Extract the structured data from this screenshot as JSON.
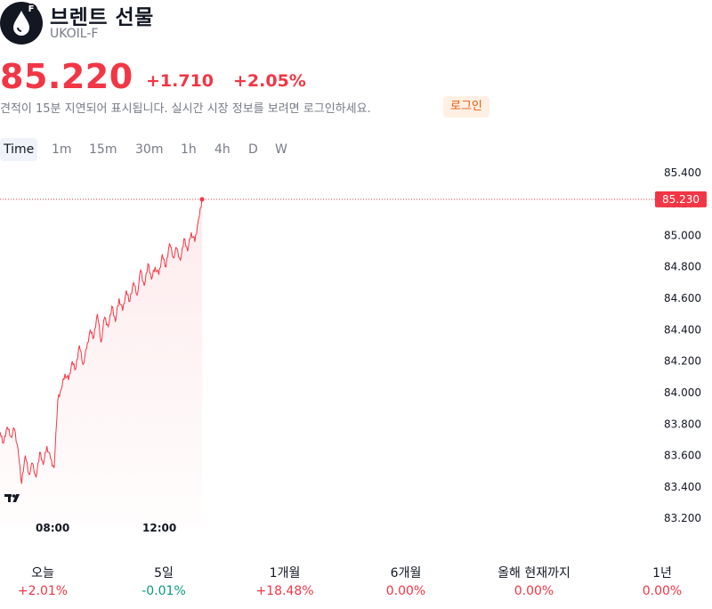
{
  "header": {
    "title": "브렌트 선물",
    "ticker": "UKOIL-F",
    "logo_badge": "F"
  },
  "quote": {
    "price": "85.220",
    "change": "+1.710",
    "change_percent": "+2.05%"
  },
  "notice": {
    "text": "견적이 15분 지연되어 표시됩니다. 실시간 시장 정보를 보려면 로그인하세요.",
    "login_label": "로그인"
  },
  "tabs": [
    "Time",
    "1m",
    "15m",
    "30m",
    "1h",
    "4h",
    "D",
    "W"
  ],
  "colors": {
    "up": "#f23645",
    "down": "#089981",
    "accent_orange": "#e8590c"
  },
  "chart_data": {
    "type": "area",
    "x_ticks": [
      "08:00",
      "12:00"
    ],
    "y_ticks": [
      "85.400",
      "85.200",
      "85.000",
      "84.800",
      "84.600",
      "84.400",
      "84.200",
      "84.000",
      "83.800",
      "83.600",
      "83.400",
      "83.200"
    ],
    "ylim": [
      83.15,
      85.45
    ],
    "last_value": "85.230",
    "series": [
      {
        "values": [
          83.75,
          83.68,
          83.78,
          83.72,
          83.77,
          83.64,
          83.42,
          83.6,
          83.48,
          83.55,
          83.46,
          83.62,
          83.54,
          83.66,
          83.58,
          83.52,
          83.95,
          84.02,
          84.12,
          84.08,
          84.2,
          84.15,
          84.3,
          84.18,
          84.28,
          84.4,
          84.35,
          84.5,
          84.32,
          84.48,
          84.42,
          84.55,
          84.45,
          84.6,
          84.52,
          84.65,
          84.58,
          84.7,
          84.62,
          84.78,
          84.68,
          84.82,
          84.72,
          84.8,
          84.75,
          84.88,
          84.8,
          84.95,
          84.86,
          84.92,
          84.84,
          84.98,
          84.9,
          85.02,
          84.96,
          85.1,
          85.23
        ]
      }
    ]
  },
  "performance": [
    {
      "label": "오늘",
      "value": "+2.01%"
    },
    {
      "label": "5일",
      "value": "-0.01%"
    },
    {
      "label": "1개월",
      "value": "+18.48%"
    },
    {
      "label": "6개월",
      "value": "0.00%"
    },
    {
      "label": "올해 현재까지",
      "value": "0.00%"
    },
    {
      "label": "1년",
      "value": "0.00%"
    }
  ]
}
